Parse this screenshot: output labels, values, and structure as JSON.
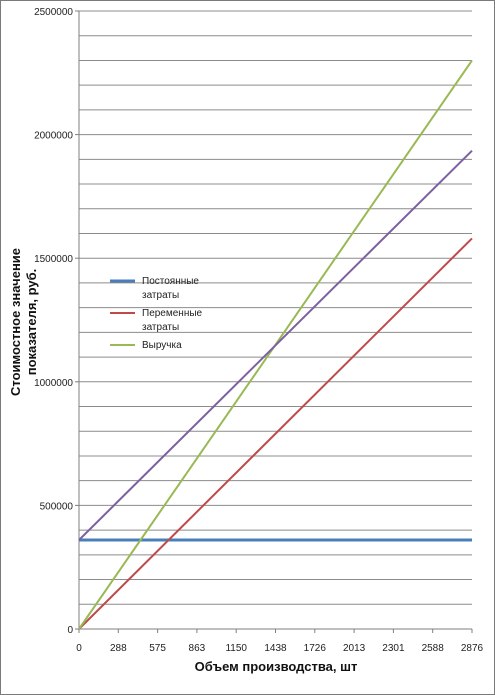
{
  "chart_data": {
    "type": "line",
    "title": "",
    "xlabel": "Объем производства, шт",
    "ylabel_lines": [
      "Стоимостное  значение",
      "показателя, руб."
    ],
    "x_ticks": [
      "0",
      "288",
      "575",
      "863",
      "1150",
      "1438",
      "1726",
      "2013",
      "2301",
      "2588",
      "2876"
    ],
    "y_ticks": [
      "0",
      "500000",
      "1000000",
      "1500000",
      "2000000",
      "2500000"
    ],
    "xlim": [
      0,
      2876
    ],
    "ylim": [
      0,
      2500000
    ],
    "grid": true,
    "legend_position": "left-middle",
    "legend": [
      {
        "lines": [
          "Постоянные",
          "затраты"
        ],
        "color": "#4a7ebb"
      },
      {
        "lines": [
          "Переменные",
          "затраты"
        ],
        "color": "#be4b48"
      },
      {
        "lines": [
          "Выручка"
        ],
        "color": "#98b954"
      }
    ],
    "series": [
      {
        "name": "Постоянные затраты",
        "color": "#4a7ebb",
        "x": [
          0,
          2876
        ],
        "y": [
          360000,
          360000
        ]
      },
      {
        "name": "Переменные затраты",
        "color": "#be4b48",
        "x": [
          0,
          2876
        ],
        "y": [
          0,
          1580000
        ]
      },
      {
        "name": "Выручка",
        "color": "#98b954",
        "x": [
          0,
          2876
        ],
        "y": [
          0,
          2300000
        ]
      },
      {
        "color": "#7d60a0",
        "x": [
          0,
          2876
        ],
        "y": [
          360000,
          1935000
        ]
      }
    ]
  }
}
